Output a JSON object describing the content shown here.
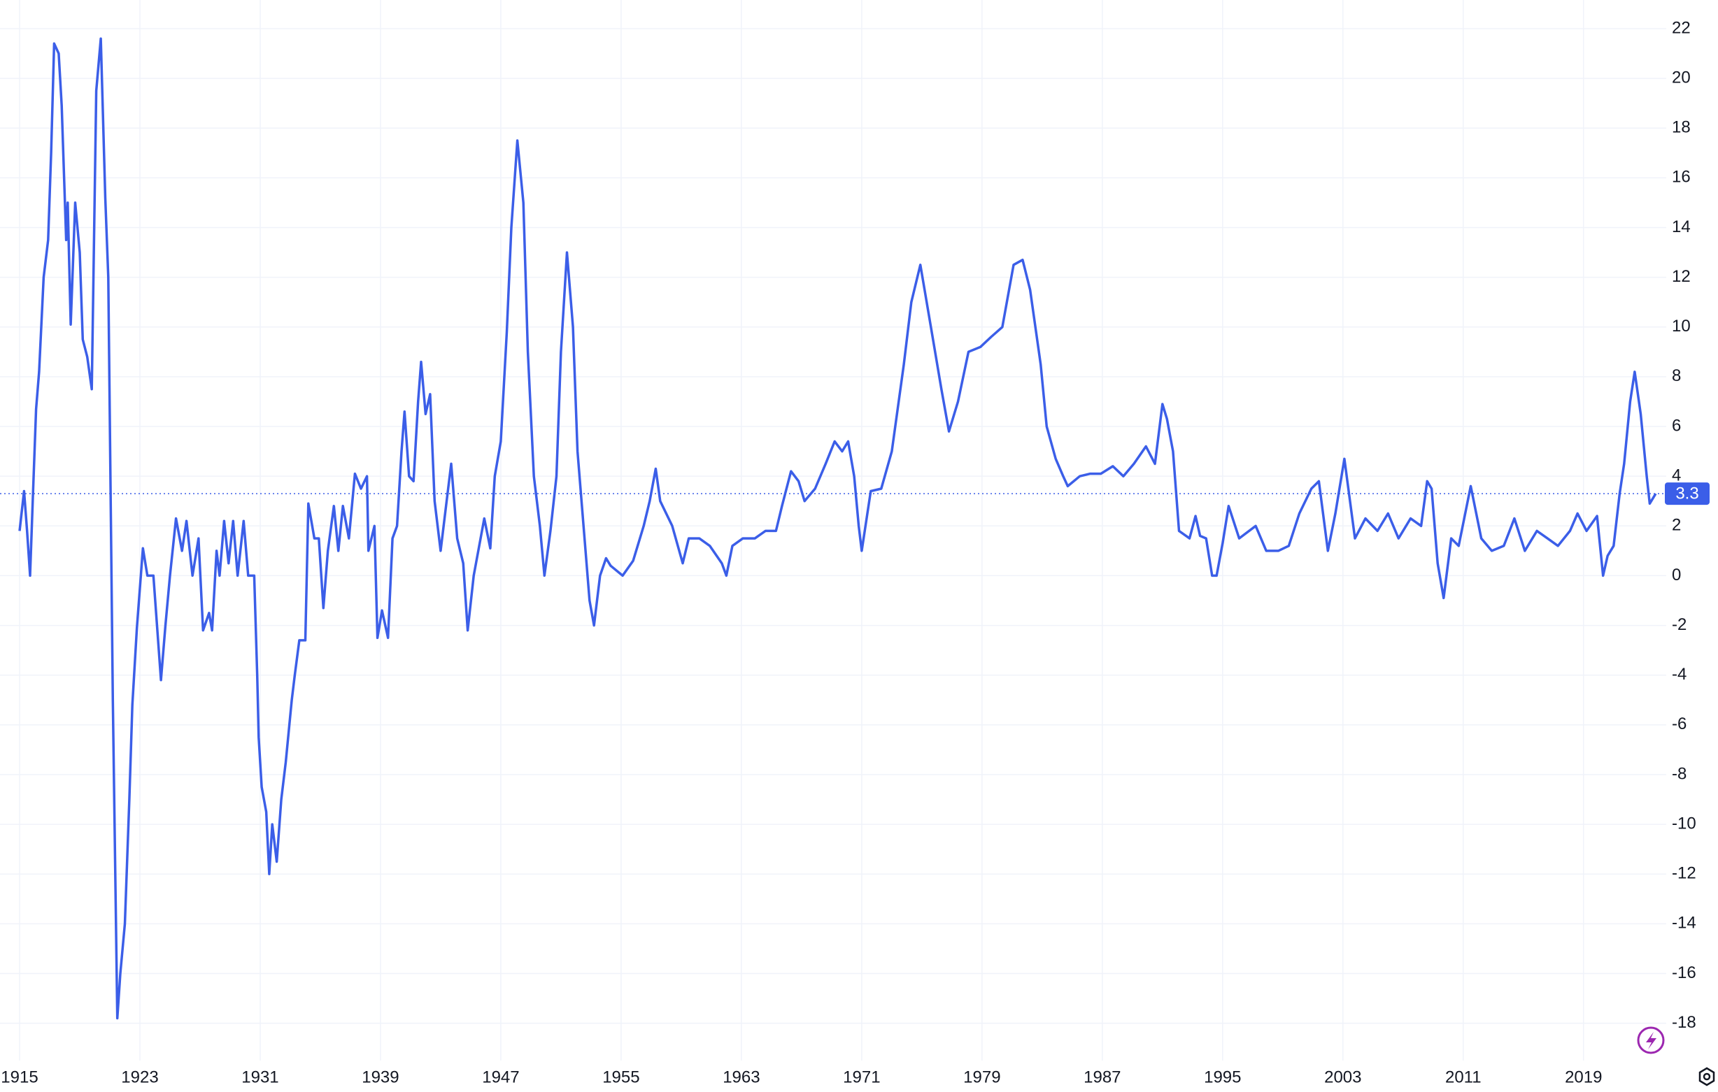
{
  "chart_data": {
    "type": "line",
    "series": [
      {
        "color": "#3b5ee8",
        "x": [
          1915.0,
          1915.3,
          1915.5,
          1915.7,
          1915.9,
          1916.1,
          1916.3,
          1916.6,
          1916.9,
          1917.1,
          1917.3,
          1917.6,
          1917.8,
          1918.1,
          1918.2,
          1918.4,
          1918.7,
          1919.0,
          1919.2,
          1919.5,
          1919.8,
          1920.1,
          1920.4,
          1920.7,
          1920.9,
          1921.2,
          1921.5,
          1921.7,
          1922.0,
          1922.3,
          1922.5,
          1922.8,
          1923.2,
          1923.5,
          1923.9,
          1924.4,
          1924.7,
          1925.0,
          1925.4,
          1925.8,
          1926.1,
          1926.5,
          1926.9,
          1927.2,
          1927.6,
          1927.8,
          1928.1,
          1928.3,
          1928.6,
          1928.9,
          1929.2,
          1929.5,
          1929.9,
          1930.2,
          1930.6,
          1930.8,
          1930.9,
          1931.1,
          1931.4,
          1931.6,
          1931.8,
          1932.1,
          1932.4,
          1932.7,
          1933.1,
          1933.3,
          1933.6,
          1934.0,
          1934.2,
          1934.6,
          1934.9,
          1935.2,
          1935.5,
          1935.9,
          1936.2,
          1936.5,
          1936.9,
          1937.3,
          1937.7,
          1938.1,
          1938.2,
          1938.6,
          1938.8,
          1939.1,
          1939.5,
          1939.8,
          1940.1,
          1940.4,
          1940.6,
          1940.9,
          1941.2,
          1941.5,
          1941.7,
          1942.0,
          1942.3,
          1942.6,
          1943.0,
          1943.4,
          1943.7,
          1944.1,
          1944.5,
          1944.8,
          1945.2,
          1945.9,
          1946.3,
          1946.6,
          1947.0,
          1947.4,
          1947.7,
          1948.1,
          1948.5,
          1948.8,
          1949.2,
          1949.6,
          1949.9,
          1950.3,
          1950.7,
          1951.0,
          1951.4,
          1951.8,
          1952.1,
          1952.5,
          1952.9,
          1953.2,
          1953.6,
          1954.0,
          1954.3,
          1955.1,
          1955.8,
          1956.5,
          1956.9,
          1957.3,
          1957.6,
          1958.4,
          1959.1,
          1959.5,
          1960.2,
          1960.9,
          1961.7,
          1962.0,
          1962.4,
          1963.1,
          1963.9,
          1964.6,
          1965.3,
          1965.7,
          1966.3,
          1966.8,
          1967.2,
          1967.9,
          1968.6,
          1969.2,
          1969.7,
          1970.1,
          1970.5,
          1970.8,
          1971.0,
          1971.6,
          1972.3,
          1973.0,
          1973.8,
          1974.3,
          1974.9,
          1975.6,
          1976.3,
          1976.8,
          1977.4,
          1978.1,
          1978.9,
          1979.6,
          1980.35,
          1981.1,
          1981.7,
          1982.2,
          1982.9,
          1983.3,
          1983.9,
          1984.4,
          1984.7,
          1985.5,
          1986.2,
          1986.9,
          1987.7,
          1988.4,
          1989.1,
          1989.9,
          1990.5,
          1991.0,
          1991.3,
          1991.7,
          1992.1,
          1992.8,
          1993.2,
          1993.5,
          1993.9,
          1994.3,
          1994.6,
          1995.0,
          1995.4,
          1996.1,
          1997.2,
          1997.9,
          1998.7,
          1999.4,
          2000.1,
          2000.9,
          2001.4,
          2002.0,
          2002.5,
          2003.1,
          2003.8,
          2004.5,
          2005.3,
          2006.0,
          2006.7,
          2007.5,
          2008.2,
          2008.6,
          2008.9,
          2009.3,
          2009.7,
          2010.2,
          2010.7,
          2011.5,
          2012.2,
          2012.9,
          2013.7,
          2014.4,
          2015.1,
          2015.9,
          2016.6,
          2017.3,
          2018.1,
          2018.6,
          2019.2,
          2019.9,
          2020.3,
          2020.6,
          2021.0,
          2021.4,
          2021.7,
          2022.1,
          2022.4,
          2022.8,
          2023.2,
          2023.4,
          2023.8
        ],
        "values": [
          1.8,
          3.4,
          1.8,
          0,
          3.4,
          6.7,
          8.2,
          12,
          13.5,
          17,
          21.4,
          21,
          18.9,
          13.5,
          15,
          10.1,
          15,
          13,
          9.5,
          8.8,
          7.5,
          19.5,
          21.6,
          15.2,
          12,
          -5,
          -17.8,
          -16,
          -14,
          -9,
          -5.2,
          -2.1,
          1.1,
          0,
          0,
          -4.2,
          -2,
          0,
          2.3,
          1,
          2.2,
          0,
          1.5,
          -2.2,
          -1.5,
          -2.2,
          1,
          0,
          2.2,
          0.5,
          2.2,
          0,
          2.2,
          0,
          0,
          -4,
          -6.5,
          -8.5,
          -9.5,
          -12,
          -10,
          -11.5,
          -9,
          -7.5,
          -5,
          -4,
          -2.6,
          -2.6,
          2.9,
          1.5,
          1.5,
          -1.3,
          1,
          2.8,
          1,
          2.8,
          1.5,
          4.1,
          3.5,
          4,
          1,
          2,
          -2.5,
          -1.4,
          -2.5,
          1.5,
          2,
          5,
          6.6,
          4,
          3.8,
          7,
          8.6,
          6.5,
          7.3,
          3,
          1,
          3,
          4.5,
          1.5,
          0.5,
          -2.2,
          0,
          2.3,
          1.1,
          4,
          5.4,
          9.8,
          14,
          17.5,
          15,
          9,
          4,
          2,
          0,
          1.8,
          4,
          9,
          13,
          10,
          5,
          2,
          -1,
          -2,
          0,
          0.7,
          0.4,
          0,
          0.6,
          2,
          3,
          4.3,
          3,
          2,
          0.5,
          1.5,
          1.5,
          1.2,
          0.5,
          0,
          1.2,
          1.5,
          1.5,
          1.8,
          1.8,
          2.8,
          4.2,
          3.8,
          3,
          3.5,
          4.5,
          5.4,
          5,
          5.4,
          4,
          2,
          1,
          3.4,
          3.5,
          5,
          8.5,
          11,
          12.5,
          10,
          7.5,
          5.8,
          7,
          9,
          9.2,
          9.6,
          10,
          12.5,
          12.7,
          11.5,
          8.5,
          6,
          4.7,
          4,
          3.6,
          4,
          4.1,
          4.1,
          4.4,
          4,
          4.5,
          5.2,
          4.5,
          6.9,
          6.3,
          5,
          1.8,
          1.5,
          2.4,
          1.6,
          1.5,
          0,
          0,
          1.3,
          2.8,
          1.5,
          2,
          1,
          1,
          1.2,
          2.5,
          3.5,
          3.8,
          1,
          2.5,
          4.7,
          1.5,
          2.3,
          1.8,
          2.5,
          1.5,
          2.3,
          2,
          3.8,
          3.5,
          0.5,
          -0.9,
          1.5,
          1.2,
          3.6,
          1.5,
          1,
          1.2,
          2.3,
          1,
          1.8,
          1.5,
          1.2,
          1.8,
          2.5,
          1.8,
          2.4,
          0,
          0.8,
          1.2,
          3.3,
          4.5,
          7,
          8.2,
          6.5,
          4,
          2.9,
          3.3
        ]
      }
    ],
    "xlim": [
      1914,
      2024.5
    ],
    "xticks": [
      1915,
      1923,
      1931,
      1939,
      1947,
      1955,
      1963,
      1971,
      1979,
      1987,
      1995,
      2003,
      2011,
      2019
    ],
    "ylim": [
      -19.5,
      22.8
    ],
    "yticks": [
      -18,
      -16,
      -14,
      -12,
      -10,
      -8,
      -6,
      -4,
      -2,
      0,
      2,
      4,
      6,
      8,
      10,
      12,
      14,
      16,
      18,
      20,
      22
    ],
    "grid": true
  }
}
